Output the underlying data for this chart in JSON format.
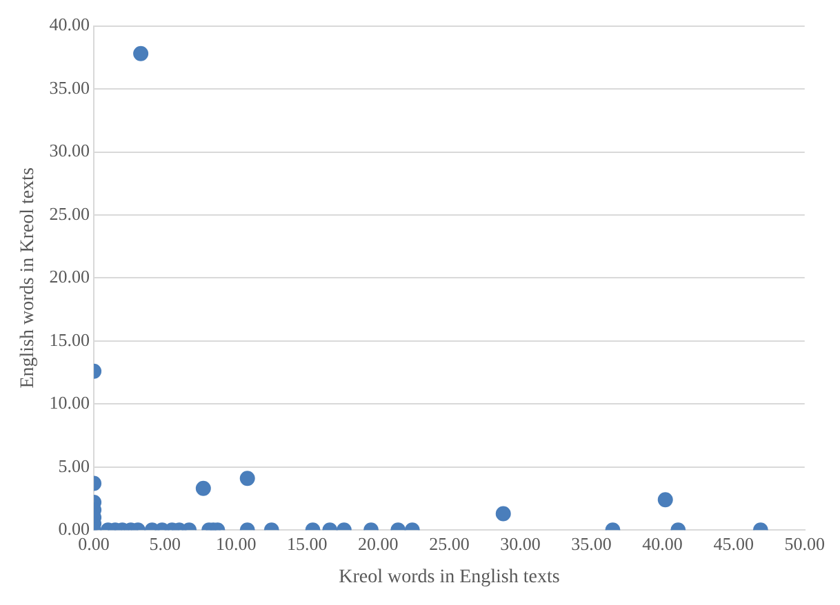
{
  "chart_data": {
    "type": "scatter",
    "xlabel": "Kreol words in English texts",
    "ylabel": "English words in Kreol texts",
    "x": [
      3.3,
      0,
      0,
      0,
      0,
      0,
      0,
      0,
      7.7,
      10.8,
      28.8,
      40.2,
      1.0,
      1.5,
      2.0,
      2.6,
      3.1,
      4.1,
      4.8,
      5.5,
      6.0,
      6.7,
      8.1,
      8.4,
      8.7,
      10.8,
      12.5,
      15.4,
      16.6,
      17.6,
      19.5,
      21.4,
      22.4,
      36.5,
      41.1,
      46.9
    ],
    "values": [
      37.8,
      12.6,
      3.7,
      2.2,
      1.6,
      1.0,
      0.5,
      0,
      3.3,
      4.1,
      1.3,
      2.4,
      0,
      0,
      0,
      0,
      0,
      0,
      0,
      0,
      0,
      0,
      0,
      0,
      0,
      0,
      0,
      0,
      0,
      0,
      0,
      0,
      0,
      0,
      0,
      0
    ],
    "color": "#4a7ebb",
    "marker": "circle",
    "grid": "y",
    "xlim": [
      0,
      50
    ],
    "xticks": [
      {
        "value": 0,
        "label": "0.00"
      },
      {
        "value": 5,
        "label": "5.00"
      },
      {
        "value": 10,
        "label": "10.00"
      },
      {
        "value": 15,
        "label": "15.00"
      },
      {
        "value": 20,
        "label": "20.00"
      },
      {
        "value": 25,
        "label": "25.00"
      },
      {
        "value": 30,
        "label": "30.00"
      },
      {
        "value": 35,
        "label": "35.00"
      },
      {
        "value": 40,
        "label": "40.00"
      },
      {
        "value": 45,
        "label": "45.00"
      },
      {
        "value": 50,
        "label": "50.00"
      }
    ],
    "ylim": [
      0,
      40
    ],
    "yticks": [
      {
        "value": 0,
        "label": "0.00"
      },
      {
        "value": 5,
        "label": "5.00"
      },
      {
        "value": 10,
        "label": "10.00"
      },
      {
        "value": 15,
        "label": "15.00"
      },
      {
        "value": 20,
        "label": "20.00"
      },
      {
        "value": 25,
        "label": "25.00"
      },
      {
        "value": 30,
        "label": "30.00"
      },
      {
        "value": 35,
        "label": "35.00"
      },
      {
        "value": 40,
        "label": "40.00"
      }
    ]
  }
}
